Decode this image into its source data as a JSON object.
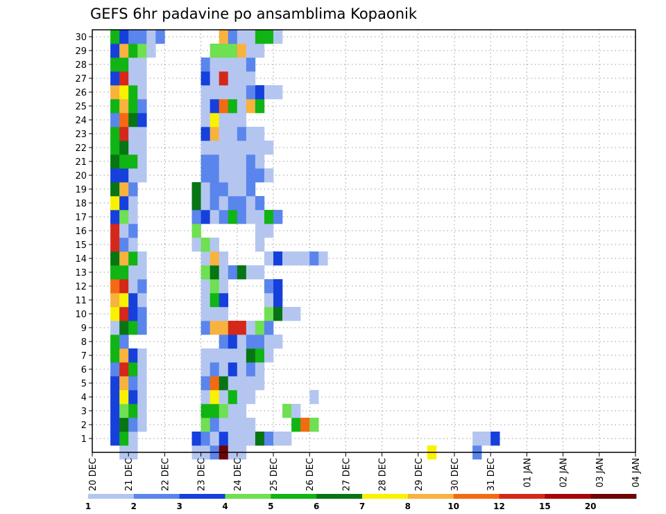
{
  "chart_data": {
    "type": "heatmap",
    "title": "GEFS 6hr padavine po ansamblima Kopaonik",
    "xlabel": "",
    "ylabel": "",
    "x_start": "20 DEC",
    "x_step_hours": 6,
    "x_count": 60,
    "x_tick_labels": [
      "20 DEC",
      "21 DEC",
      "22 DEC",
      "23 DEC",
      "24 DEC",
      "25 DEC",
      "26 DEC",
      "27 DEC",
      "28 DEC",
      "29 DEC",
      "30 DEC",
      "31 DEC",
      "01 JAN",
      "02 JAN",
      "03 JAN",
      "04 JAN"
    ],
    "y_tick_labels": [
      "1",
      "2",
      "3",
      "4",
      "5",
      "6",
      "7",
      "8",
      "9",
      "10",
      "11",
      "12",
      "13",
      "14",
      "15",
      "16",
      "17",
      "18",
      "19",
      "20",
      "21",
      "22",
      "23",
      "24",
      "25",
      "26",
      "27",
      "28",
      "29",
      "30"
    ],
    "y_range": [
      0,
      30
    ],
    "grid": true,
    "legend_position": "bottom",
    "legend_levels": [
      "1",
      "2",
      "3",
      "4",
      "5",
      "6",
      "7",
      "8",
      "10",
      "12",
      "15",
      "20"
    ],
    "colors": [
      "#b4c6f0",
      "#5a85ec",
      "#1640dc",
      "#6ee052",
      "#10b414",
      "#077514",
      "#f8f200",
      "#f8b23e",
      "#f46a12",
      "#d4281a",
      "#a80606",
      "#6e0404"
    ],
    "rows": {
      "0": "...1.1.......1.1.2.112.1.1.....................7.....2",
      "1": "..3.5.1.......3.2.1.3.1.1.1.6.2.1.1.....................1.1.3",
      "2": "..3.6.2.1.......4.2.1.1.1.1.....5.9.4",
      "3": "..3.4.5.1.......5.5.4.1.1.....4.1",
      "4": "..3.7.3.1.......1.7.1.5.1.1.......1",
      "5": "..3.8.2.1.......2.9.6.1.1.1.1",
      "6": "..2.10.5.1.......1.2.1.3.1.2.1",
      "7": "..5.8.3.1.......1.1.1.1.1.6.5.1",
      "8": "..5.2...........2.3.1.2.2.1.1",
      "9": "..1.6.5.2.......2.8.8.10.10.1.4.2",
      "10": "..7.10.3.2.......1.1.1.....4.6.1.1",
      "11": "..8.7.3.1.......1.5.3.....1.3",
      "12": "..9.10.1.2.......1.4.1.....2.3",
      "13": "..5.5.1.1.......4.6.1.2.6.1.1",
      "14": "..6.8.5.1.......1.8.1.....1.3.1.1.1.2.1",
      "15": "..10.2.1.......1.4.1.....1",
      "16": "..10.1.2.......4.......1.1",
      "17": "..3.4.1.......2.3.1.2.5.2.1.1.5.2",
      "18": "..7.3.1.......6.1.2.1.2.2.1.2",
      "19": "..6.8.2.......6.1.2.2.1.1.2",
      "20": "..3.3.1.1.......2.2.1.1.1.2.2.1",
      "21": "..6.5.5.1.......2.2.1.1.1.2.1",
      "22": "..5.6.1.1.......1.1.1.1.1.1.1.1",
      "23": "..5.10.1.1.......3.8.1.1.2.1.1",
      "24": "..2.9.6.3.......1.7.1.1.1",
      "25": "..5.8.5.2.......1.3.9.5.1.8.5",
      "26": "..8.7.5.1.......1.1.1.1.1.2.3.1.1",
      "27": "..3.10.1.1.......3.1.10.1.1.1",
      "28": "..5.5.1.1.......2.1.1.1.1.2",
      "29": "..3.8.5.4.1.......4.4.4.8.1.1",
      "30": "..5.3.2.2.1.2.......8.2.1.1.5.5.1"
    }
  }
}
